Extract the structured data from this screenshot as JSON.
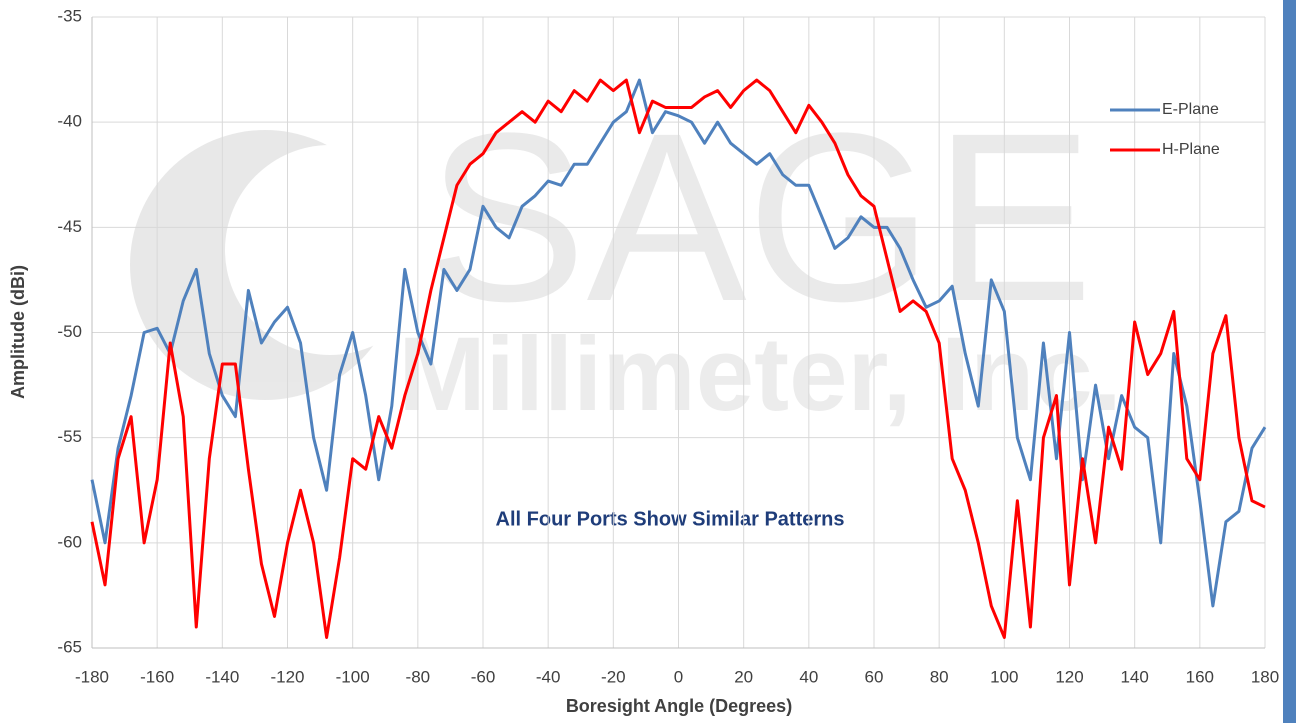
{
  "chart_data": {
    "type": "line",
    "xlabel": "Boresight Angle (Degrees)",
    "ylabel": "Amplitude (dBi)",
    "annotation": "All Four Ports Show Similar Patterns",
    "watermark": [
      "SAGE",
      "Millimeter, Inc."
    ],
    "grid": true,
    "legend": "right",
    "xlim": [
      -180,
      180
    ],
    "ylim": [
      -65,
      -35
    ],
    "xticks": [
      -180,
      -160,
      -140,
      -120,
      -100,
      -80,
      -60,
      -40,
      -20,
      0,
      20,
      40,
      60,
      80,
      100,
      120,
      140,
      160,
      180
    ],
    "yticks": [
      -65,
      -60,
      -55,
      -50,
      -45,
      -40,
      -35
    ],
    "x": [
      -180,
      -176,
      -172,
      -168,
      -164,
      -160,
      -156,
      -152,
      -148,
      -144,
      -140,
      -136,
      -132,
      -128,
      -124,
      -120,
      -116,
      -112,
      -108,
      -104,
      -100,
      -96,
      -92,
      -88,
      -84,
      -80,
      -76,
      -72,
      -68,
      -64,
      -60,
      -56,
      -52,
      -48,
      -44,
      -40,
      -36,
      -32,
      -28,
      -24,
      -20,
      -16,
      -12,
      -8,
      -4,
      0,
      4,
      8,
      12,
      16,
      20,
      24,
      28,
      32,
      36,
      40,
      44,
      48,
      52,
      56,
      60,
      64,
      68,
      72,
      76,
      80,
      84,
      88,
      92,
      96,
      100,
      104,
      108,
      112,
      116,
      120,
      124,
      128,
      132,
      136,
      140,
      144,
      148,
      152,
      156,
      160,
      164,
      168,
      172,
      176,
      180
    ],
    "series": [
      {
        "name": "E-Plane",
        "color": "#4f81bd",
        "values": [
          -57,
          -60,
          -55.5,
          -53,
          -50,
          -49.8,
          -51,
          -48.5,
          -47,
          -51,
          -53,
          -54,
          -48,
          -50.5,
          -49.5,
          -48.8,
          -50.5,
          -55,
          -57.5,
          -52,
          -50,
          -53,
          -57,
          -53.5,
          -47,
          -50,
          -51.5,
          -47,
          -48,
          -47,
          -44,
          -45,
          -45.5,
          -44,
          -43.5,
          -42.8,
          -43,
          -42,
          -42,
          -41,
          -40,
          -39.5,
          -38,
          -40.5,
          -39.5,
          -39.7,
          -40,
          -41,
          -40,
          -41,
          -41.5,
          -42,
          -41.5,
          -42.5,
          -43,
          -43,
          -44.5,
          -46,
          -45.5,
          -44.5,
          -45,
          -45,
          -46,
          -47.5,
          -48.8,
          -48.5,
          -47.8,
          -51,
          -53.5,
          -47.5,
          -49,
          -55,
          -57,
          -50.5,
          -56,
          -50,
          -57,
          -52.5,
          -56,
          -53,
          -54.5,
          -55,
          -60,
          -51,
          -53.5,
          -58,
          -63,
          -59,
          -58.5,
          -55.5,
          -54.5
        ]
      },
      {
        "name": "H-Plane",
        "color": "#ff0000",
        "values": [
          -59,
          -62,
          -56,
          -54,
          -60,
          -57,
          -50.5,
          -54,
          -64,
          -56,
          -51.5,
          -51.5,
          -56.5,
          -61,
          -63.5,
          -60,
          -57.5,
          -60,
          -64.5,
          -60.7,
          -56,
          -56.5,
          -54,
          -55.5,
          -53,
          -51,
          -48,
          -45.5,
          -43,
          -42,
          -41.5,
          -40.5,
          -40,
          -39.5,
          -40,
          -39,
          -39.5,
          -38.5,
          -39,
          -38,
          -38.5,
          -38,
          -40.5,
          -39,
          -39.3,
          -39.3,
          -39.3,
          -38.8,
          -38.5,
          -39.3,
          -38.5,
          -38,
          -38.5,
          -39.5,
          -40.5,
          -39.2,
          -40,
          -41,
          -42.5,
          -43.5,
          -44,
          -46.5,
          -49,
          -48.5,
          -49,
          -50.5,
          -56,
          -57.5,
          -60,
          -63,
          -64.5,
          -58,
          -64,
          -55,
          -53,
          -62,
          -56,
          -60,
          -54.5,
          -56.5,
          -49.5,
          -52,
          -51,
          -49,
          -56,
          -57,
          -51,
          -49.2,
          -55,
          -58,
          -58.3
        ]
      }
    ]
  }
}
